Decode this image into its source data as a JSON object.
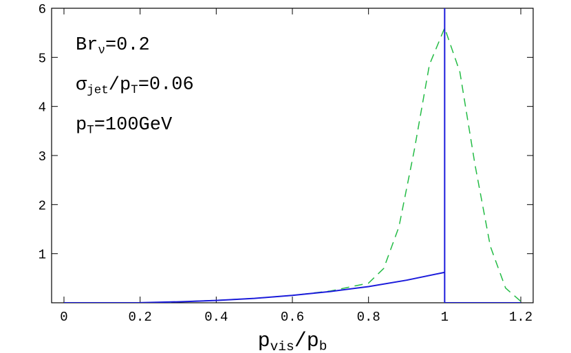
{
  "chart_data": {
    "type": "line",
    "xlim": [
      -0.0325,
      1.2325
    ],
    "ylim": [
      0,
      6
    ],
    "xticks": [
      0,
      0.2,
      0.4,
      0.6,
      0.8,
      1,
      1.2
    ],
    "yticks": [
      1,
      2,
      3,
      4,
      5,
      6
    ],
    "x_label": [
      {
        "text": "p"
      },
      {
        "sub": "vis"
      },
      {
        "text": "/p"
      },
      {
        "sub": "b"
      }
    ],
    "annotations": [
      [
        {
          "text": "Br"
        },
        {
          "sub": "ν"
        },
        {
          "text": "=0.2"
        }
      ],
      [
        {
          "text": "σ"
        },
        {
          "sub": "jet"
        },
        {
          "text": "/p"
        },
        {
          "sub": "T"
        },
        {
          "text": "=0.06"
        }
      ],
      [
        {
          "text": "p"
        },
        {
          "sub": "T"
        },
        {
          "text": "=100GeV"
        }
      ]
    ],
    "series": [
      {
        "color": "#22bb44",
        "style": "dashed",
        "x": [
          0.26,
          0.3,
          0.4,
          0.5,
          0.6,
          0.7,
          0.8,
          0.84,
          0.88,
          0.92,
          0.96,
          1.0,
          1.04,
          1.08,
          1.12,
          1.16,
          1.2
        ],
        "values": [
          0,
          0.02,
          0.05,
          0.09,
          0.15,
          0.24,
          0.4,
          0.7,
          1.55,
          3.1,
          4.85,
          5.6,
          4.7,
          2.8,
          1.15,
          0.3,
          0.03
        ]
      },
      {
        "color": "#1a1adb",
        "style": "solid",
        "x": [
          0,
          0.1,
          0.2,
          0.3,
          0.4,
          0.5,
          0.6,
          0.7,
          0.8,
          0.9,
          1,
          1,
          1,
          1.2
        ],
        "values": [
          0,
          0,
          0.001,
          0.02,
          0.048,
          0.09,
          0.15,
          0.23,
          0.33,
          0.46,
          0.62,
          6,
          0,
          0
        ]
      }
    ]
  }
}
